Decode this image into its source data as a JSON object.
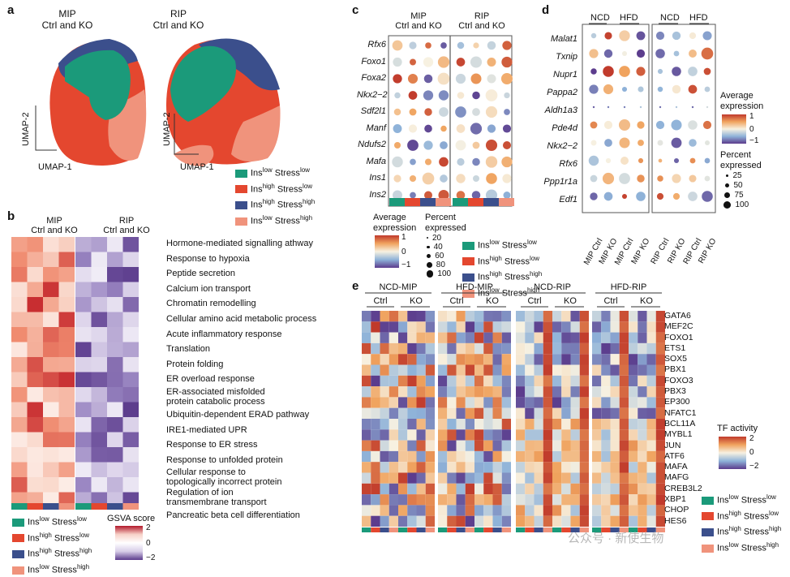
{
  "colors": {
    "green": "#1b9a7a",
    "red": "#e4472f",
    "navy": "#3b4f8c",
    "salmon": "#f0937c",
    "orange": "#e0872a",
    "purple": "#5b3b8c"
  },
  "legend_groups": [
    {
      "base": "Ins",
      "sup1": "low",
      "mid": " Stress",
      "sup2": "low"
    },
    {
      "base": "Ins",
      "sup1": "high",
      "mid": " Stress",
      "sup2": "low"
    },
    {
      "base": "Ins",
      "sup1": "high",
      "mid": " Stress",
      "sup2": "high"
    },
    {
      "base": "Ins",
      "sup1": "low",
      "mid": " Stress",
      "sup2": "high"
    }
  ],
  "panel_a": {
    "label": "a",
    "mip_title_1": "MIP",
    "mip_title_2": "Ctrl and KO",
    "rip_title_1": "RIP",
    "rip_title_2": "Ctrl and KO",
    "umap_x": "UMAP-1",
    "umap_y": "UMAP-2"
  },
  "panel_b": {
    "label": "b",
    "mip_title_1": "MIP",
    "mip_title_2": "Ctrl and KO",
    "rip_title_1": "RIP",
    "rip_title_2": "Ctrl and KO",
    "pathways": [
      "Hormone-mediated signalling athway",
      "Response to hypoxia",
      "Peptide secretion",
      "Calcium ion transport",
      "Chromatin remodelling",
      "Cellular amino acid metabolic process",
      "Acute inflammatory response",
      "Translation",
      "Protein folding",
      "ER overload response",
      "ER-associated misfolded",
      "protein catabolic process",
      "Ubiquitin-dependent ERAD pathway",
      "IRE1-mediated UPR",
      "Response to ER stress",
      "Response to unfolded protein",
      "Cellular response to",
      "topologically incorrect protein",
      "Regulation of ion",
      "transmembrane transport",
      "Pancreatic beta cell differentiation"
    ],
    "scale_title": "GSVA score",
    "scale_ticks": [
      "2",
      "0",
      "−2"
    ]
  },
  "panel_c": {
    "label": "c",
    "mip_title_1": "MIP",
    "mip_title_2": "Ctrl and KO",
    "rip_title_1": "RIP",
    "rip_title_2": "Ctrl and KO",
    "genes": [
      "Rfx6",
      "Foxo1",
      "Foxa2",
      "Nkx2−2",
      "Sdf2l1",
      "Manf",
      "Ndufs2",
      "Mafa",
      "Ins1",
      "Ins2"
    ],
    "avg_title_1": "Average",
    "avg_title_2": "expression",
    "avg_ticks": [
      "1",
      "0",
      "−1"
    ],
    "pct_title_1": "Percent",
    "pct_title_2": "expressed",
    "pct_ticks": [
      "20",
      "40",
      "60",
      "80",
      "100"
    ]
  },
  "panel_d": {
    "label": "d",
    "header_ncd": "NCD",
    "header_hfd": "HFD",
    "genes": [
      "Malat1",
      "Txnip",
      "Nupr1",
      "Pappa2",
      "Aldh1a3",
      "Pde4d",
      "Nkx2−2",
      "Rfx6",
      "Ppp1r1a",
      "Edf1"
    ],
    "mip_cols": [
      "MIP Ctrl",
      "MIP KO",
      "MIP Ctrl",
      "MIP KO"
    ],
    "rip_cols": [
      "RIP Ctrl",
      "RIP KO",
      "RIP Ctrl",
      "RIP KO"
    ],
    "avg_title_1": "Average",
    "avg_title_2": "expression",
    "avg_ticks": [
      "1",
      "0",
      "−1"
    ],
    "pct_title_1": "Percent",
    "pct_title_2": "expressed",
    "pct_ticks": [
      "25",
      "50",
      "75",
      "100"
    ]
  },
  "panel_e": {
    "label": "e",
    "groups": [
      "NCD-MIP",
      "HFD-MIP",
      "NCD-RIP",
      "HFD-RIP"
    ],
    "sub": [
      "Ctrl",
      "KO"
    ],
    "tfs": [
      "GATA6",
      "MEF2C",
      "FOXO1",
      "ETS1",
      "SOX5",
      "PBX1",
      "FOXO3",
      "PBX3",
      "EP300",
      "NFATC1",
      "BCL11A",
      "MYBL1",
      "JUN",
      "ATF6",
      "MAFA",
      "MAFG",
      "CREB3L2",
      "XBP1",
      "CHOP",
      "HES6"
    ],
    "scale_title": "TF activity",
    "scale_ticks": [
      "2",
      "0",
      "−2"
    ]
  },
  "watermark": "公众号 · 新使生物"
}
